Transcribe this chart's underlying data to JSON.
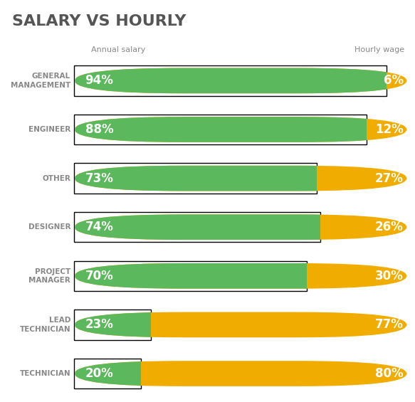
{
  "title": "SALARY VS HOURLY",
  "title_color": "#555555",
  "label_salary": "Annual salary",
  "label_hourly": "Hourly wage",
  "green_color": "#5cb85c",
  "orange_color": "#f0ad00",
  "text_color": "#ffffff",
  "label_color": "#888888",
  "categories": [
    "GENERAL\nMANAGEMENT",
    "ENGINEER",
    "OTHER",
    "DESIGNER",
    "PROJECT\nMANAGER",
    "LEAD\nTECHNICIAN",
    "TECHNICIAN"
  ],
  "salary_pct": [
    94,
    88,
    73,
    74,
    70,
    23,
    20
  ],
  "hourly_pct": [
    6,
    12,
    27,
    26,
    30,
    77,
    80
  ],
  "background_color": "#ffffff"
}
